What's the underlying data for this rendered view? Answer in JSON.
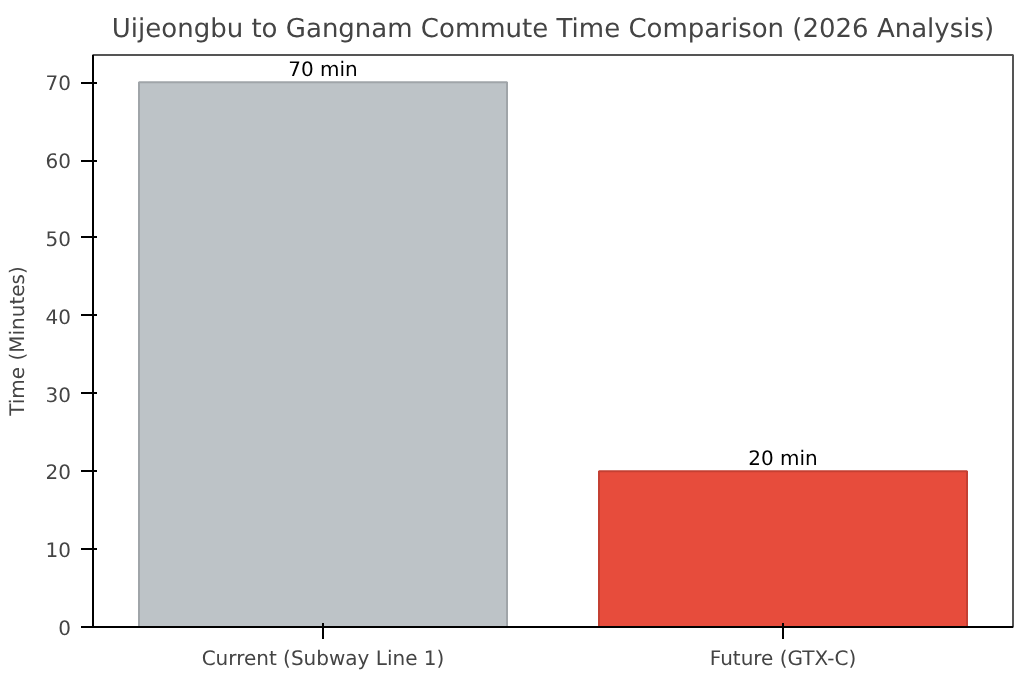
{
  "chart_data": {
    "type": "bar",
    "title": "Uijeongbu to Gangnam Commute Time Comparison (2026 Analysis)",
    "ylabel": "Time (Minutes)",
    "categories": [
      "Current (Subway Line 1)",
      "Future (GTX-C)"
    ],
    "values": [
      70,
      20
    ],
    "colors": [
      "#bdc3c7",
      "#e74c3c"
    ],
    "value_labels": [
      "70 min",
      "20 min"
    ],
    "ylim": [
      0,
      73.5
    ],
    "yticks": [
      0,
      10,
      20,
      30,
      40,
      50,
      60,
      70
    ],
    "grid": false
  }
}
